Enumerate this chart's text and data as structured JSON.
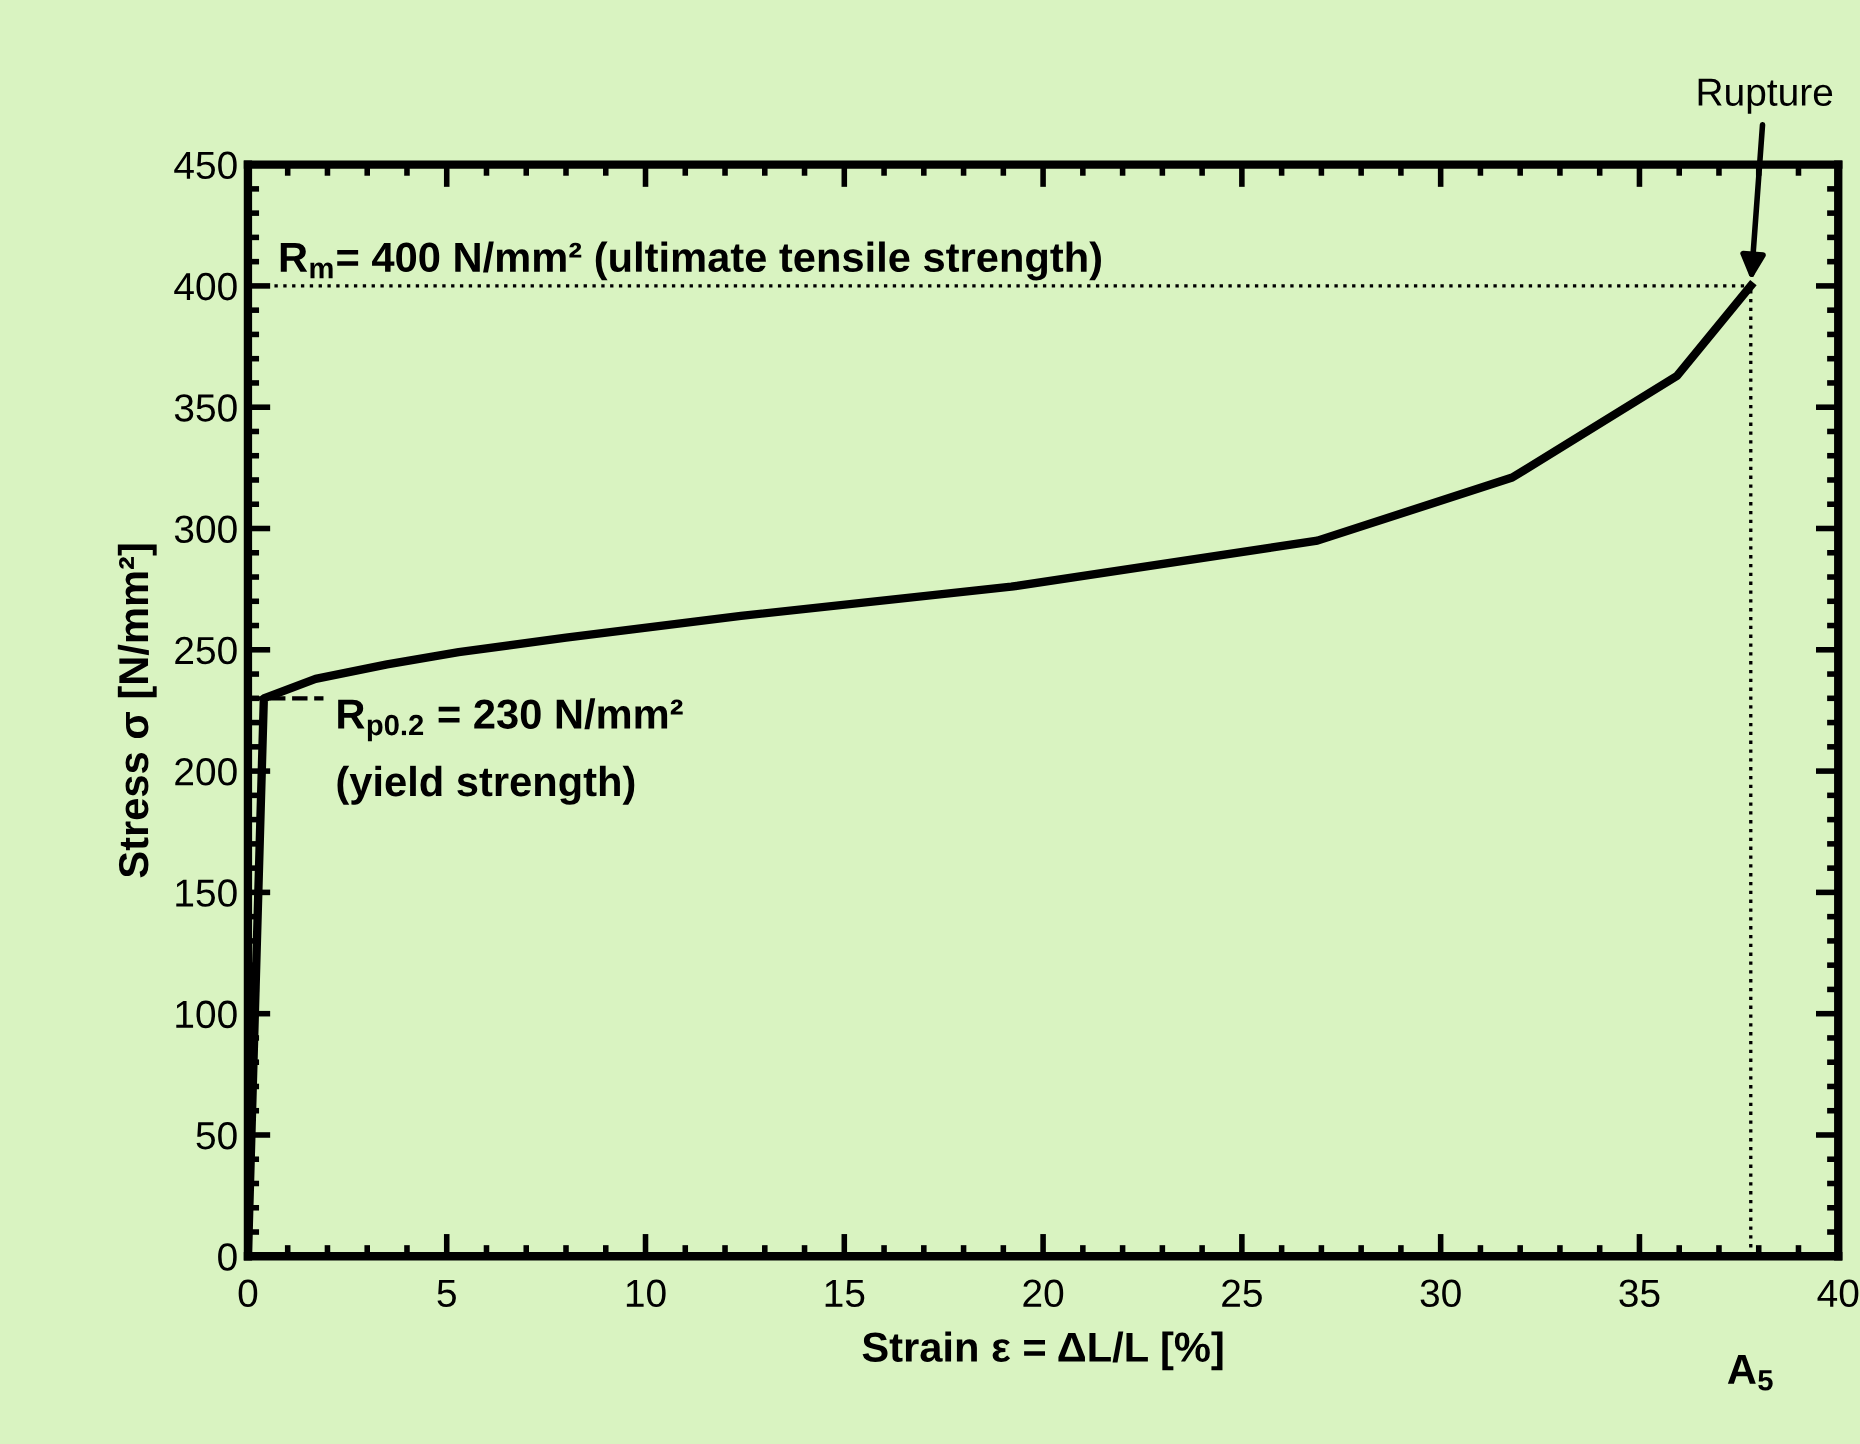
{
  "chart_data": {
    "type": "line",
    "xlabel": "Strain ε = ΔL/L [%]",
    "ylabel": "Stress σ [N/mm²]",
    "x": [
      0,
      0.4,
      1.7,
      3.5,
      5.3,
      8,
      12.4,
      19.2,
      26.9,
      31.8,
      35.95,
      37.8
    ],
    "series": [
      {
        "color": "#000000",
        "values": [
          0,
          230,
          238,
          244,
          249,
          255,
          264,
          276,
          295,
          321,
          363,
          400
        ]
      }
    ],
    "xlim": [
      0,
      40
    ],
    "xticks": [
      0,
      5,
      10,
      15,
      20,
      25,
      30,
      35,
      40
    ],
    "ylim": [
      0,
      450
    ],
    "yticks": [
      0,
      50,
      100,
      150,
      200,
      250,
      300,
      350,
      400,
      450
    ],
    "grid": false,
    "legend": false,
    "marker": "none",
    "line_style": "solid",
    "ref_lines": [
      {
        "axis": "y",
        "value": 400,
        "label": "R$_{m}$= 400 N/mm² (ultimate tensile strength)",
        "line_style": "dotted",
        "color": "#000000"
      },
      {
        "axis": "y",
        "value": 230,
        "label": "R$_{p0.2}$ = 230 N/mm²\n(yield strength)",
        "line_style": "dashed",
        "color": "#000000"
      },
      {
        "axis": "x",
        "value": 37.8,
        "label": "A$_{5}$",
        "line_style": "dotted",
        "color": "#000000"
      }
    ],
    "annotations": [
      {
        "text": "Rupture",
        "x": 37.8,
        "y": 400
      }
    ]
  }
}
